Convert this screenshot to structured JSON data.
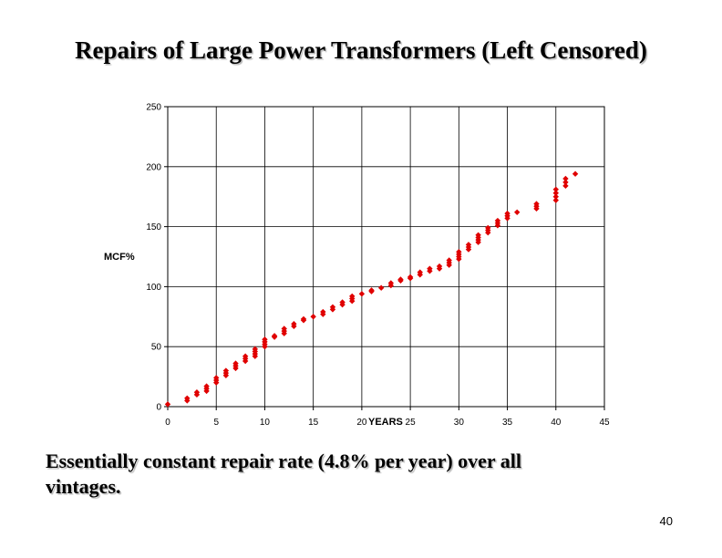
{
  "title": "Repairs of Large Power Transformers (Left Censored)",
  "caption": "Essentially constant repair rate (4.8% per year) over all\n vintages.",
  "page_number": "40",
  "chart_data": {
    "type": "scatter",
    "title": "",
    "xlabel": "YEARS",
    "ylabel": "MCF%",
    "xlim": [
      0,
      45
    ],
    "ylim": [
      0,
      250
    ],
    "xticks": [
      "0",
      "5",
      "10",
      "15",
      "20",
      "25",
      "30",
      "35",
      "40",
      "45"
    ],
    "yticks": [
      "0",
      "50",
      "100",
      "150",
      "200",
      "250"
    ],
    "grid": true,
    "marker_color": "#e00000",
    "series": [
      {
        "points": [
          [
            0,
            2
          ],
          [
            2,
            5
          ],
          [
            2,
            7
          ],
          [
            3,
            10
          ],
          [
            3,
            12
          ],
          [
            4,
            13
          ],
          [
            4,
            15
          ],
          [
            4,
            17
          ],
          [
            5,
            20
          ],
          [
            5,
            22
          ],
          [
            5,
            24
          ],
          [
            6,
            26
          ],
          [
            6,
            28
          ],
          [
            6,
            30
          ],
          [
            7,
            32
          ],
          [
            7,
            34
          ],
          [
            7,
            36
          ],
          [
            8,
            38
          ],
          [
            8,
            40
          ],
          [
            8,
            42
          ],
          [
            9,
            42
          ],
          [
            9,
            44
          ],
          [
            9,
            46
          ],
          [
            9,
            48
          ],
          [
            10,
            50
          ],
          [
            10,
            52
          ],
          [
            10,
            54
          ],
          [
            10,
            56
          ],
          [
            11,
            58
          ],
          [
            11,
            59
          ],
          [
            12,
            61
          ],
          [
            12,
            63
          ],
          [
            12,
            65
          ],
          [
            13,
            67
          ],
          [
            13,
            69
          ],
          [
            14,
            72
          ],
          [
            14,
            73
          ],
          [
            15,
            75
          ],
          [
            16,
            77
          ],
          [
            16,
            79
          ],
          [
            17,
            81
          ],
          [
            17,
            83
          ],
          [
            18,
            85
          ],
          [
            18,
            87
          ],
          [
            19,
            88
          ],
          [
            19,
            90
          ],
          [
            19,
            92
          ],
          [
            20,
            94
          ],
          [
            21,
            96
          ],
          [
            21,
            97
          ],
          [
            22,
            99
          ],
          [
            23,
            101
          ],
          [
            23,
            103
          ],
          [
            24,
            105
          ],
          [
            24,
            106
          ],
          [
            25,
            107
          ],
          [
            25,
            108
          ],
          [
            26,
            110
          ],
          [
            26,
            112
          ],
          [
            27,
            113
          ],
          [
            27,
            115
          ],
          [
            28,
            115
          ],
          [
            28,
            117
          ],
          [
            29,
            118
          ],
          [
            29,
            120
          ],
          [
            29,
            122
          ],
          [
            30,
            123
          ],
          [
            30,
            125
          ],
          [
            30,
            127
          ],
          [
            30,
            129
          ],
          [
            31,
            131
          ],
          [
            31,
            133
          ],
          [
            31,
            135
          ],
          [
            32,
            137
          ],
          [
            32,
            139
          ],
          [
            32,
            141
          ],
          [
            32,
            143
          ],
          [
            33,
            145
          ],
          [
            33,
            147
          ],
          [
            33,
            149
          ],
          [
            34,
            151
          ],
          [
            34,
            153
          ],
          [
            34,
            155
          ],
          [
            35,
            157
          ],
          [
            35,
            159
          ],
          [
            35,
            161
          ],
          [
            36,
            162
          ],
          [
            38,
            165
          ],
          [
            38,
            167
          ],
          [
            38,
            169
          ],
          [
            40,
            172
          ],
          [
            40,
            175
          ],
          [
            40,
            178
          ],
          [
            40,
            181
          ],
          [
            41,
            184
          ],
          [
            41,
            187
          ],
          [
            41,
            190
          ],
          [
            42,
            194
          ]
        ]
      }
    ]
  }
}
